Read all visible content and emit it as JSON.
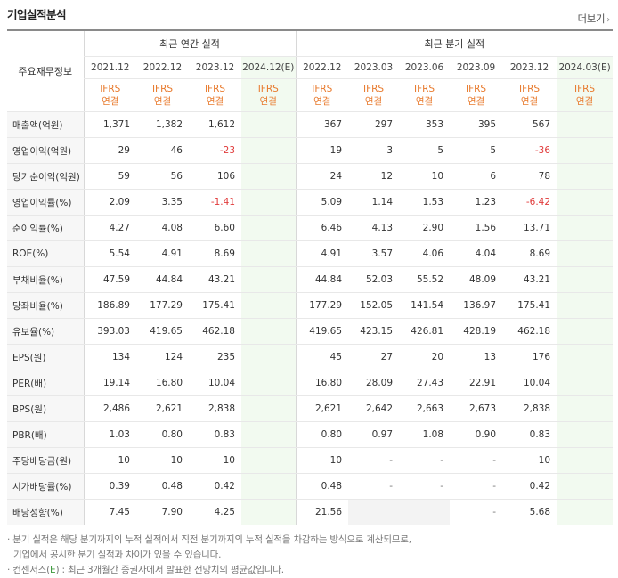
{
  "title": "기업실적분석",
  "more_label": "더보기",
  "header": {
    "row_label": "주요재무정보",
    "annual_label": "최근 연간 실적",
    "quarter_label": "최근 분기 실적",
    "annual_periods": [
      "2021.12",
      "2022.12",
      "2023.12",
      "2024.12(E)"
    ],
    "quarter_periods": [
      "2022.12",
      "2023.03",
      "2023.06",
      "2023.09",
      "2023.12",
      "2024.03(E)"
    ],
    "ifrs_top": "IFRS",
    "ifrs_bottom": "연결"
  },
  "rows": [
    {
      "label": "매출액(억원)",
      "values": [
        "1,371",
        "1,382",
        "1,612",
        "",
        "367",
        "297",
        "353",
        "395",
        "567",
        ""
      ]
    },
    {
      "label": "영업이익(억원)",
      "values": [
        "29",
        "46",
        "-23",
        "",
        "19",
        "3",
        "5",
        "5",
        "-36",
        ""
      ]
    },
    {
      "label": "당기순이익(억원)",
      "values": [
        "59",
        "56",
        "106",
        "",
        "24",
        "12",
        "10",
        "6",
        "78",
        ""
      ]
    },
    {
      "label": "영업이익률(%)",
      "values": [
        "2.09",
        "3.35",
        "-1.41",
        "",
        "5.09",
        "1.14",
        "1.53",
        "1.23",
        "-6.42",
        ""
      ]
    },
    {
      "label": "순이익률(%)",
      "values": [
        "4.27",
        "4.08",
        "6.60",
        "",
        "6.46",
        "4.13",
        "2.90",
        "1.56",
        "13.71",
        ""
      ]
    },
    {
      "label": "ROE(%)",
      "values": [
        "5.54",
        "4.91",
        "8.69",
        "",
        "4.91",
        "3.57",
        "4.06",
        "4.04",
        "8.69",
        ""
      ]
    },
    {
      "label": "부채비율(%)",
      "values": [
        "47.59",
        "44.84",
        "43.21",
        "",
        "44.84",
        "52.03",
        "55.52",
        "48.09",
        "43.21",
        ""
      ]
    },
    {
      "label": "당좌비율(%)",
      "values": [
        "186.89",
        "177.29",
        "175.41",
        "",
        "177.29",
        "152.05",
        "141.54",
        "136.97",
        "175.41",
        ""
      ]
    },
    {
      "label": "유보율(%)",
      "values": [
        "393.03",
        "419.65",
        "462.18",
        "",
        "419.65",
        "423.15",
        "426.81",
        "428.19",
        "462.18",
        ""
      ]
    },
    {
      "label": "EPS(원)",
      "values": [
        "134",
        "124",
        "235",
        "",
        "45",
        "27",
        "20",
        "13",
        "176",
        ""
      ]
    },
    {
      "label": "PER(배)",
      "values": [
        "19.14",
        "16.80",
        "10.04",
        "",
        "16.80",
        "28.09",
        "27.43",
        "22.91",
        "10.04",
        ""
      ]
    },
    {
      "label": "BPS(원)",
      "values": [
        "2,486",
        "2,621",
        "2,838",
        "",
        "2,621",
        "2,642",
        "2,663",
        "2,673",
        "2,838",
        ""
      ]
    },
    {
      "label": "PBR(배)",
      "values": [
        "1.03",
        "0.80",
        "0.83",
        "",
        "0.80",
        "0.97",
        "1.08",
        "0.90",
        "0.83",
        ""
      ]
    },
    {
      "label": "주당배당금(원)",
      "values": [
        "10",
        "10",
        "10",
        "",
        "10",
        "-",
        "-",
        "-",
        "10",
        ""
      ]
    },
    {
      "label": "시가배당률(%)",
      "values": [
        "0.39",
        "0.48",
        "0.42",
        "",
        "0.48",
        "-",
        "-",
        "-",
        "0.42",
        ""
      ]
    },
    {
      "label": "배당성향(%)",
      "values": [
        "7.45",
        "7.90",
        "4.25",
        "",
        "21.56",
        "",
        "",
        "-",
        "5.68",
        ""
      ]
    }
  ],
  "notes": {
    "line1": "분기 실적은 해당 분기까지의 누적 실적에서 직전 분기까지의 누적 실적을 차감하는 방식으로 계산되므로,",
    "line2": "기업에서 공시한 분기 실적과 차이가 있을 수 있습니다.",
    "line3_prefix": "컨센서스(",
    "line3_e": "E",
    "line3_suffix": ") : 최근 3개월간 증권사에서 발표한 전망치의 평균값입니다."
  },
  "colors": {
    "negative": "#e03a3a",
    "ifrs": "#e87a2d",
    "estimate_bg": "#f2faf0",
    "empty_bg": "#f3f3f3"
  }
}
